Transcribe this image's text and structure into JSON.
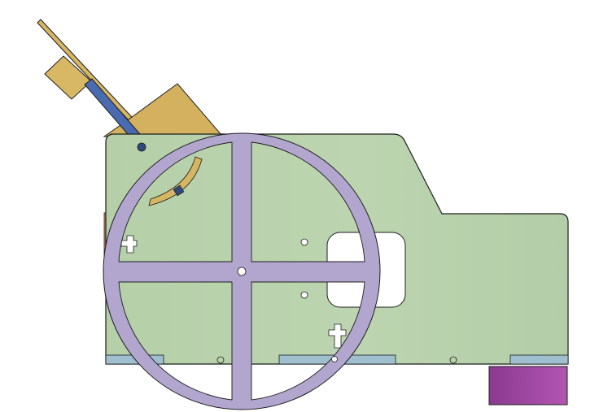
{
  "viewport": {
    "background": "#ffffff"
  },
  "colors": {
    "side_plate_fill": "#b7d0ab",
    "side_plate_highlight": "#c3d8b6",
    "outline": "#1c1c1c",
    "wheel_fill": "#b2a6cf",
    "bracket_fill": "#d6b563",
    "rod_fill": "#4a6bb0",
    "foot_strip_fill": "#9fbfcf",
    "foot_block_fill": "#a44aa6",
    "orange_tab_fill": "#d58a5c",
    "hole_fill": "#ffffff"
  },
  "parts": [
    "side-plate",
    "handwheel",
    "bracket",
    "guide-rod",
    "foot-strips",
    "foot-block",
    "orange-tab"
  ]
}
